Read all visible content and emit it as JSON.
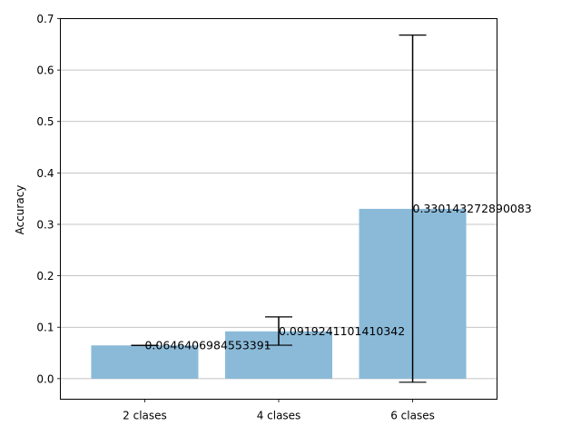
{
  "chart_data": {
    "type": "bar",
    "title": "",
    "xlabel": "",
    "ylabel": "Accuracy",
    "categories": [
      "2 clases",
      "4 clases",
      "6 clases"
    ],
    "values": [
      0.0646406984553391,
      0.0919241101410342,
      0.330143272890083
    ],
    "error_bars": [
      {
        "low": 0.0646,
        "high": 0.0646
      },
      {
        "low": 0.065,
        "high": 0.12
      },
      {
        "low": -0.007,
        "high": 0.668
      }
    ],
    "value_labels": [
      "0.0646406984553391",
      "0.0919241101410342",
      "0.330143272890083"
    ],
    "ylim": [
      -0.04,
      0.7
    ],
    "yticks": [
      0.0,
      0.1,
      0.2,
      0.3,
      0.4,
      0.5,
      0.6,
      0.7
    ],
    "ytick_labels": [
      "0.0",
      "0.1",
      "0.2",
      "0.3",
      "0.4",
      "0.5",
      "0.6",
      "0.7"
    ],
    "grid": "y",
    "legend": "none",
    "bar_color": "#8bbad9",
    "error_color": "#000000",
    "grid_color": "#b0b0b0"
  }
}
